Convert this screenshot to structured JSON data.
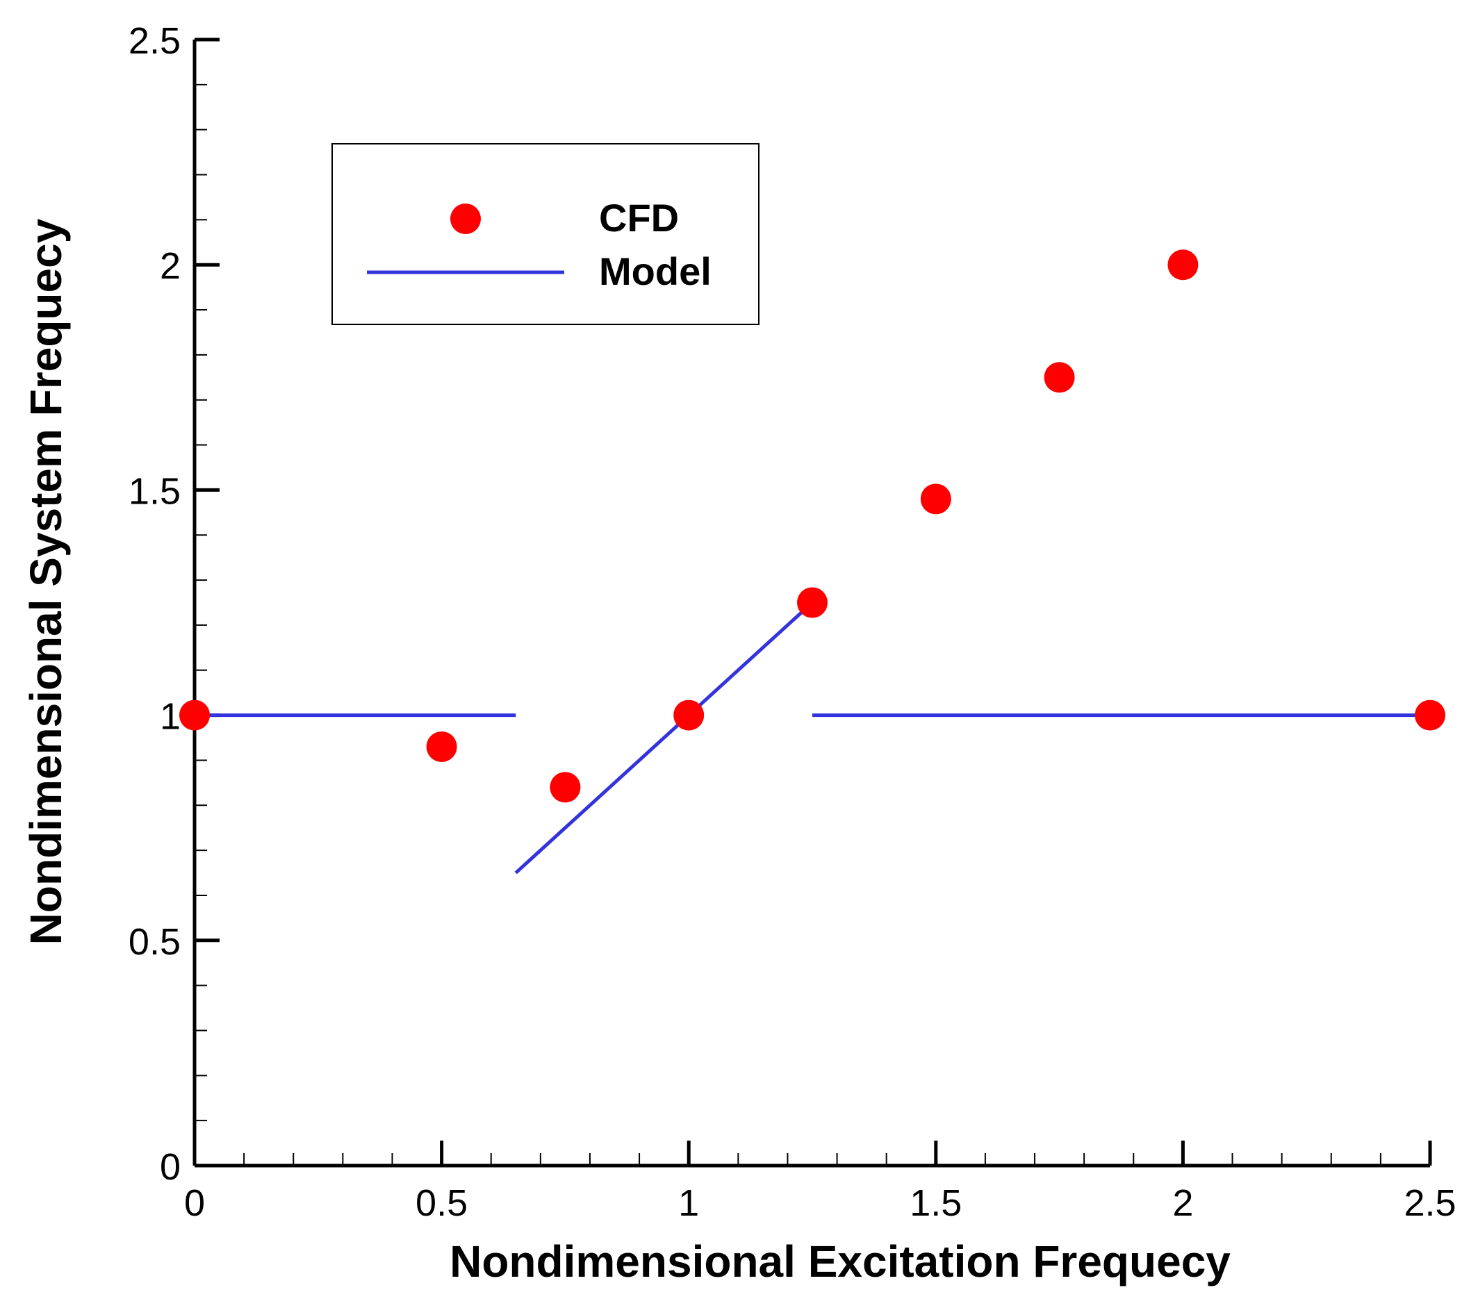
{
  "chart_data": {
    "type": "scatter",
    "title": "",
    "xlabel": "Nondimensional Excitation Frequecy",
    "ylabel": "Nondimensional System Frequecy",
    "xlim": [
      0,
      2.5
    ],
    "ylim": [
      0,
      2.5
    ],
    "xticks": [
      0,
      0.5,
      1,
      1.5,
      2,
      2.5
    ],
    "yticks": [
      0,
      0.5,
      1,
      1.5,
      2,
      2.5
    ],
    "xtick_labels": [
      "0",
      "0.5",
      "1",
      "1.5",
      "2",
      "2.5"
    ],
    "ytick_labels": [
      "0",
      "0.5",
      "1",
      "1.5",
      "2",
      "2.5"
    ],
    "minor_tick_step": 0.1,
    "grid": false,
    "legend_position": "top-left",
    "series": [
      {
        "name": "CFD",
        "kind": "markers",
        "color": "#ff0000",
        "x": [
          0,
          0.5,
          0.75,
          1.0,
          1.25,
          1.5,
          1.75,
          2.0,
          2.5
        ],
        "y": [
          1.0,
          0.93,
          0.84,
          1.0,
          1.25,
          1.48,
          1.75,
          2.0,
          1.0
        ]
      },
      {
        "name": "Model",
        "kind": "line",
        "color": "#3333dd",
        "segments": [
          [
            [
              0,
              1.0
            ],
            [
              0.65,
              1.0
            ]
          ],
          [
            [
              0.65,
              0.65
            ],
            [
              1.25,
              1.25
            ]
          ],
          [
            [
              1.25,
              1.0
            ],
            [
              2.5,
              1.0
            ]
          ]
        ]
      }
    ]
  }
}
